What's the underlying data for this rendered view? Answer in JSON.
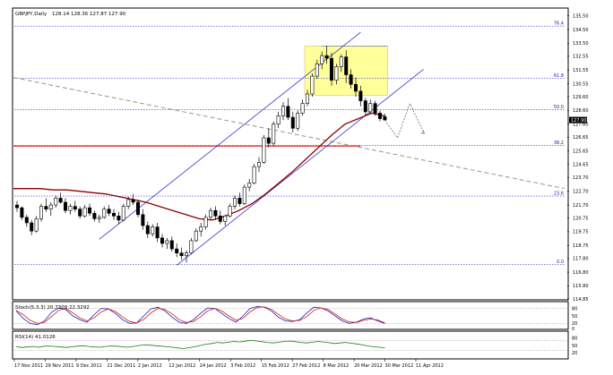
{
  "chart_data": {
    "type": "candlestick",
    "symbol_title": "GBPJPY,Daily",
    "ohlc_header": "128.14 128.36 127.87 127.90",
    "current_price_label": "127.90",
    "current_price": 127.9,
    "price_axis_ticks": [
      "135.50",
      "134.50",
      "133.50",
      "132.55",
      "131.55",
      "130.55",
      "129.60",
      "128.60",
      "127.60",
      "126.65",
      "125.65",
      "124.65",
      "123.70",
      "122.70",
      "121.70",
      "120.75",
      "119.75",
      "118.75",
      "117.80",
      "116.80",
      "115.80",
      "114.85"
    ],
    "ylim": [
      114.85,
      136.0
    ],
    "date_axis_labels": [
      "17 Nov 2011",
      "29 Nov 2011",
      "9 Dec 2011",
      "21 Dec 2011",
      "2 Jan 2012",
      "12 Jan 2012",
      "24 Jan 2012",
      "3 Feb 2012",
      "15 Feb 2012",
      "27 Feb 2012",
      "8 Mar 2012",
      "20 Mar 2012",
      "30 Mar 2012",
      "11 Apr 2012"
    ],
    "fib_levels": [
      {
        "label": "76.4",
        "price": 134.75
      },
      {
        "label": "61.8",
        "price": 130.95
      },
      {
        "label": "50.0",
        "price": 128.65
      },
      {
        "label": "38.2",
        "price": 126.05
      },
      {
        "label": "23.6",
        "price": 122.35
      },
      {
        "label": "0.0",
        "price": 117.35
      }
    ],
    "horizontal_line_price": 126.0,
    "candles_ohlc": [
      [
        121.7,
        122.0,
        121.2,
        121.5
      ],
      [
        121.5,
        121.6,
        120.6,
        120.8
      ],
      [
        120.8,
        121.0,
        120.1,
        120.4
      ],
      [
        120.4,
        120.6,
        119.5,
        119.8
      ],
      [
        119.8,
        120.9,
        119.7,
        120.7
      ],
      [
        120.7,
        121.8,
        120.5,
        121.6
      ],
      [
        121.6,
        122.2,
        121.2,
        121.4
      ],
      [
        121.4,
        121.9,
        120.9,
        121.7
      ],
      [
        121.7,
        122.4,
        121.5,
        122.2
      ],
      [
        122.2,
        122.6,
        121.8,
        121.9
      ],
      [
        121.9,
        122.2,
        121.1,
        121.3
      ],
      [
        121.3,
        121.8,
        121.0,
        121.6
      ],
      [
        121.6,
        122.0,
        121.2,
        121.4
      ],
      [
        121.4,
        121.6,
        120.7,
        120.9
      ],
      [
        120.9,
        121.7,
        120.8,
        121.5
      ],
      [
        121.5,
        121.8,
        120.9,
        121.1
      ],
      [
        121.1,
        121.3,
        120.5,
        120.7
      ],
      [
        120.7,
        121.0,
        120.4,
        120.8
      ],
      [
        120.8,
        121.6,
        120.7,
        121.4
      ],
      [
        121.4,
        121.7,
        120.9,
        121.1
      ],
      [
        121.1,
        121.4,
        120.6,
        120.9
      ],
      [
        120.9,
        121.2,
        120.3,
        120.6
      ],
      [
        120.6,
        121.8,
        120.5,
        121.6
      ],
      [
        121.6,
        122.3,
        121.4,
        122.1
      ],
      [
        122.1,
        122.5,
        121.7,
        121.9
      ],
      [
        121.9,
        122.1,
        120.8,
        121.0
      ],
      [
        121.0,
        121.4,
        119.9,
        120.2
      ],
      [
        120.2,
        120.5,
        119.3,
        119.6
      ],
      [
        119.6,
        120.3,
        119.4,
        120.1
      ],
      [
        120.1,
        120.4,
        119.0,
        119.3
      ],
      [
        119.3,
        119.6,
        118.6,
        118.9
      ],
      [
        118.9,
        119.3,
        118.5,
        119.1
      ],
      [
        119.1,
        119.4,
        118.3,
        118.5
      ],
      [
        118.5,
        118.9,
        117.9,
        118.2
      ],
      [
        118.2,
        118.6,
        117.7,
        118.0
      ],
      [
        118.0,
        118.4,
        117.5,
        118.2
      ],
      [
        118.2,
        119.3,
        118.1,
        119.1
      ],
      [
        119.1,
        120.0,
        119.0,
        119.8
      ],
      [
        119.8,
        120.4,
        119.4,
        120.1
      ],
      [
        120.1,
        121.0,
        119.9,
        120.8
      ],
      [
        120.8,
        121.5,
        120.6,
        121.3
      ],
      [
        121.3,
        121.6,
        120.6,
        120.9
      ],
      [
        120.9,
        121.3,
        120.3,
        120.5
      ],
      [
        120.5,
        121.0,
        120.2,
        120.9
      ],
      [
        120.9,
        121.8,
        120.8,
        121.6
      ],
      [
        121.6,
        122.4,
        121.4,
        122.2
      ],
      [
        122.2,
        122.6,
        121.6,
        121.8
      ],
      [
        121.8,
        123.2,
        121.7,
        123.0
      ],
      [
        123.0,
        123.6,
        122.7,
        123.3
      ],
      [
        123.3,
        124.7,
        123.2,
        124.5
      ],
      [
        124.5,
        125.2,
        124.1,
        124.8
      ],
      [
        124.8,
        126.8,
        124.7,
        126.6
      ],
      [
        126.6,
        127.3,
        125.9,
        126.2
      ],
      [
        126.2,
        127.8,
        126.0,
        127.6
      ],
      [
        127.6,
        128.5,
        127.3,
        128.2
      ],
      [
        128.2,
        129.2,
        127.9,
        128.9
      ],
      [
        128.9,
        129.5,
        127.9,
        128.1
      ],
      [
        128.1,
        128.5,
        127.0,
        127.3
      ],
      [
        127.3,
        128.6,
        127.1,
        128.4
      ],
      [
        128.4,
        129.4,
        128.2,
        129.1
      ],
      [
        129.1,
        130.1,
        128.9,
        129.8
      ],
      [
        129.8,
        131.3,
        129.6,
        131.1
      ],
      [
        131.1,
        132.3,
        130.9,
        132.0
      ],
      [
        132.0,
        132.9,
        131.6,
        132.6
      ],
      [
        132.6,
        133.3,
        132.0,
        132.4
      ],
      [
        132.4,
        132.8,
        130.4,
        130.8
      ],
      [
        130.8,
        132.0,
        130.5,
        131.8
      ],
      [
        131.8,
        132.7,
        131.4,
        132.5
      ],
      [
        132.5,
        133.0,
        130.6,
        131.2
      ],
      [
        131.2,
        131.6,
        130.2,
        130.5
      ],
      [
        130.5,
        131.0,
        129.6,
        130.0
      ],
      [
        130.0,
        130.4,
        128.9,
        129.3
      ],
      [
        129.3,
        129.5,
        128.2,
        128.5
      ],
      [
        128.5,
        129.4,
        128.3,
        129.1
      ],
      [
        129.1,
        129.3,
        128.2,
        128.4
      ],
      [
        128.4,
        128.6,
        127.8,
        128.0
      ],
      [
        128.14,
        128.36,
        127.87,
        127.9
      ]
    ],
    "moving_average_price_path": [
      122.9,
      122.9,
      122.9,
      122.8,
      122.8,
      122.7,
      122.6,
      122.5,
      122.3,
      122.1,
      121.9,
      121.6,
      121.3,
      121.0,
      120.7,
      120.6,
      120.9,
      121.3,
      121.8,
      122.5,
      123.3,
      124.1,
      125.0,
      125.9,
      126.8,
      127.6,
      128.0,
      128.4,
      128.2
    ],
    "indicators": [
      {
        "name": "Stoch(5,3,3) 20.7309 22.3292",
        "axis_ticks": [
          "80",
          "50",
          "20",
          "0"
        ],
        "ylim": [
          0,
          100
        ],
        "levels": [
          20,
          80
        ],
        "series": [
          {
            "name": "Stoch main",
            "color": "#1e1eb4",
            "values": [
              70,
              40,
              20,
              15,
              30,
              65,
              82,
              75,
              50,
              35,
              25,
              55,
              80,
              78,
              60,
              35,
              20,
              22,
              50,
              78,
              85,
              70,
              45,
              25,
              20,
              35,
              60,
              82,
              80,
              60,
              40,
              25,
              50,
              80,
              88,
              85,
              70,
              45,
              30,
              28,
              35,
              62,
              85,
              82,
              70,
              50,
              30,
              20,
              25,
              38,
              42,
              30,
              20
            ]
          },
          {
            "name": "Stoch signal",
            "color": "#d21e1e",
            "values": [
              72,
              55,
              32,
              20,
              24,
              48,
              72,
              80,
              62,
              42,
              30,
              42,
              66,
              78,
              68,
              46,
              28,
              22,
              36,
              62,
              80,
              76,
              58,
              35,
              24,
              28,
              46,
              70,
              80,
              70,
              50,
              33,
              40,
              66,
              84,
              86,
              76,
              56,
              38,
              30,
              32,
              48,
              72,
              82,
              76,
              58,
              38,
              26,
              24,
              32,
              38,
              34,
              22
            ]
          }
        ]
      },
      {
        "name": "RSI(14) 41.0126",
        "axis_ticks": [
          "80",
          "50",
          "20"
        ],
        "ylim": [
          0,
          100
        ],
        "levels": [
          30,
          70
        ],
        "series": [
          {
            "name": "RSI(14)",
            "color": "#1a7a1a",
            "values": [
              45,
              42,
              44,
              46,
              43,
              47,
              48,
              46,
              44,
              42,
              45,
              47,
              49,
              46,
              44,
              43,
              46,
              48,
              47,
              45,
              43,
              46,
              50,
              52,
              51,
              49,
              47,
              45,
              43,
              40,
              38,
              41,
              45,
              50,
              55,
              58,
              62,
              60,
              63,
              66,
              64,
              67,
              70,
              68,
              65,
              62,
              60,
              63,
              66,
              68,
              65,
              62,
              60,
              63,
              66,
              64,
              61,
              58,
              60,
              62,
              59,
              56,
              52,
              48,
              45,
              43,
              41
            ]
          }
        ]
      }
    ],
    "colors": {
      "bull_candle": "#ffffff",
      "bear_candle": "#000000",
      "channel": "#3333cc",
      "moving_average": "#8b0000",
      "horizontal_line": "#dd2222",
      "trend_dash": "#9a9a7a",
      "fib_dotted": "#3333cc",
      "highlight_box": "#ffff99",
      "projection": "#555555"
    }
  }
}
